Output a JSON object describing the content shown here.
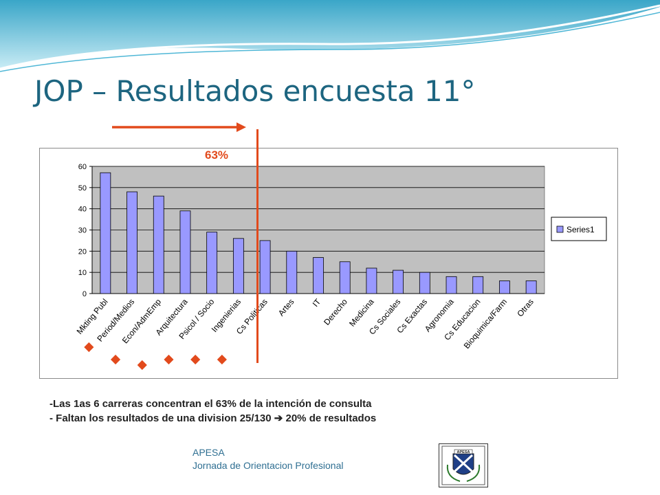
{
  "slide": {
    "title": "JOP – Resultados encuesta 11°",
    "highlight_label": "63%",
    "notes": [
      "-Las 1as 6 carreras concentran el 63% de la intención de consulta",
      "- Faltan los resultados de una division 25/130 ➔ 20% de resultados"
    ],
    "footer_org": "APESA",
    "footer_event": "Jornada de Orientacion Profesional",
    "logo_text": "APESA"
  },
  "colors": {
    "title": "#1d6580",
    "accent": "#e24a1c",
    "bar_fill": "#9999ff",
    "plot_bg": "#c0c0c0",
    "footer": "#2f6f92"
  },
  "chart_data": {
    "type": "bar",
    "categories": [
      "Mkting Publ",
      "Period/Medios",
      "Econ/AdmEmp",
      "Arquitectura",
      "Psicol / Socio",
      "Ingenierias",
      "Cs Politicas",
      "Artes",
      "IT",
      "Derecho",
      "Medicina",
      "Cs Sociales",
      "Cs Exactas",
      "Agronomia",
      "Cs Educacion",
      "Bioquimica/Farm",
      "Otras"
    ],
    "series": [
      {
        "name": "Series1",
        "values": [
          57,
          48,
          46,
          39,
          29,
          26,
          25,
          20,
          17,
          15,
          12,
          11,
          10,
          8,
          8,
          6,
          6
        ]
      }
    ],
    "ylim": [
      0,
      60
    ],
    "yticks": [
      0,
      10,
      20,
      30,
      40,
      50,
      60
    ],
    "grid": true,
    "legend": "right"
  }
}
